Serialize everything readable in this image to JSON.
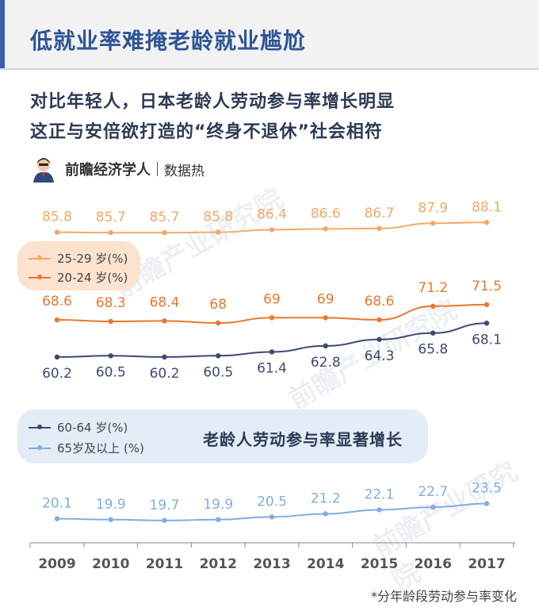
{
  "title": "低就业率难掩老龄就业尴尬",
  "subtitle_lines": [
    "对比年轻人，日本老龄人劳动参与率增长明显",
    "这正与安倍欲打造的“终身不退休”社会相符"
  ],
  "source": {
    "brand": "前瞻经济学人",
    "channel": "数据热",
    "avatar_icon": "person-avatar-icon"
  },
  "watermark": "前瞻产业研究院",
  "highlight_text": "老龄人劳动参与率显著增长",
  "footnote": "*分年龄段劳动参与率变化",
  "legend_top": [
    "25-29 岁(%)",
    "20-24 岁(%)"
  ],
  "legend_bottom": [
    "60-64 岁(%)",
    "65岁及以上 (%)"
  ],
  "colors": {
    "s25": "#f4a86a",
    "s20": "#e8782e",
    "s60": "#3d4a72",
    "s65": "#7faee0",
    "title": "#2f5496"
  },
  "chart_data": {
    "type": "line",
    "categories": [
      "2009",
      "2010",
      "2011",
      "2012",
      "2013",
      "2014",
      "2015",
      "2016",
      "2017"
    ],
    "series": [
      {
        "name": "25-29 岁(%)",
        "values": [
          85.8,
          85.7,
          85.7,
          85.8,
          86.4,
          86.6,
          86.7,
          87.9,
          88.1
        ],
        "labels": [
          "85.8",
          "85.7",
          "85.7",
          "85.8",
          "86.4",
          "86.6",
          "86.7",
          "87.9",
          "88.1"
        ]
      },
      {
        "name": "20-24 岁(%)",
        "values": [
          68.6,
          68.3,
          68.4,
          68,
          69,
          69,
          68.6,
          71.2,
          71.5
        ],
        "labels": [
          "68.6",
          "68.3",
          "68.4",
          "68",
          "69",
          "69",
          "68.6",
          "71.2",
          "71.5"
        ]
      },
      {
        "name": "60-64 岁(%)",
        "values": [
          60.2,
          60.5,
          60.2,
          60.5,
          61.4,
          62.8,
          64.3,
          65.8,
          68.1
        ],
        "labels": [
          "60.2",
          "60.5",
          "60.2",
          "60.5",
          "61.4",
          "62.8",
          "64.3",
          "65.8",
          "68.1"
        ]
      },
      {
        "name": "65岁及以上 (%)",
        "values": [
          20.1,
          19.9,
          19.7,
          19.9,
          20.5,
          21.2,
          22.1,
          22.7,
          23.5
        ],
        "labels": [
          "20.1",
          "19.9",
          "19.7",
          "19.9",
          "20.5",
          "21.2",
          "22.1",
          "22.7",
          "23.5"
        ]
      }
    ],
    "xlabel": "",
    "ylabel": "",
    "legend": "left",
    "grid": false
  }
}
